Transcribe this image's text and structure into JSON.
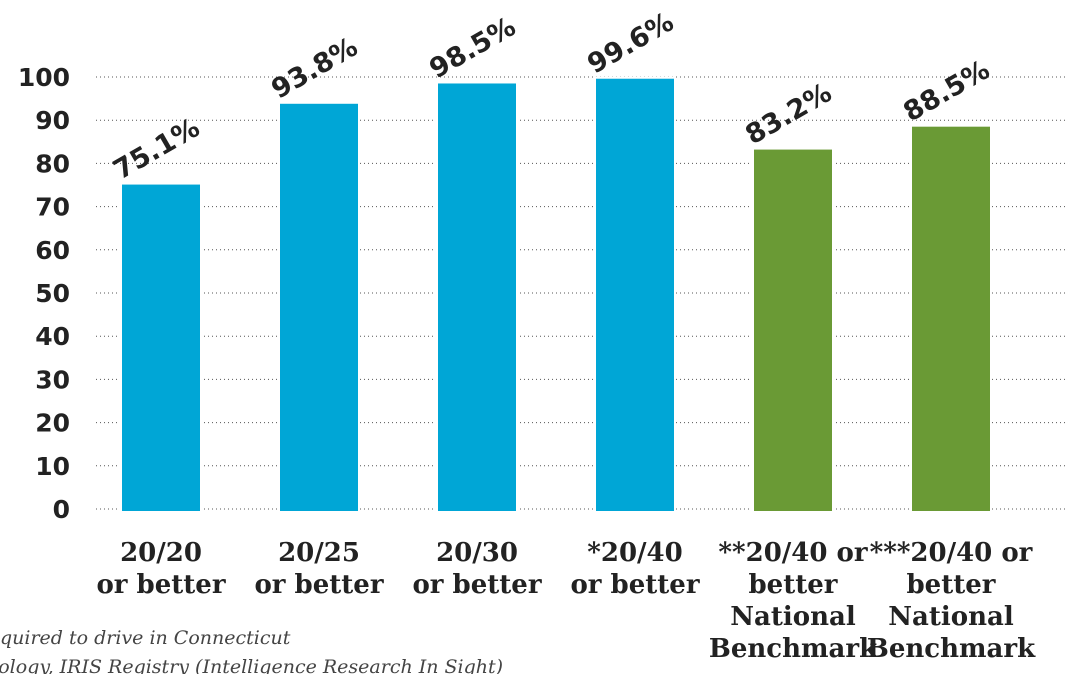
{
  "chart_data": {
    "type": "bar",
    "title": "",
    "xlabel": "",
    "ylabel": "",
    "ylim": [
      0,
      100
    ],
    "yticks": [
      0,
      10,
      20,
      30,
      40,
      50,
      60,
      70,
      80,
      90,
      100
    ],
    "grid": true,
    "categories": [
      [
        "20/20",
        "or better"
      ],
      [
        "20/25",
        "or better"
      ],
      [
        "20/30",
        "or better"
      ],
      [
        "*20/40",
        "or better"
      ],
      [
        "**20/40 or",
        "better",
        "National",
        "Benchmark"
      ],
      [
        "***20/40 or",
        "better",
        "National",
        "Benchmark"
      ]
    ],
    "values": [
      75.1,
      93.8,
      98.5,
      99.6,
      83.2,
      88.5
    ],
    "data_labels": [
      "75.1%",
      "93.8%",
      "98.5%",
      "99.6%",
      "83.2%",
      "88.5%"
    ],
    "bar_colors": [
      "#00a6d6",
      "#00a6d6",
      "#00a6d6",
      "#00a6d6",
      "#6a9a35",
      "#6a9a35"
    ]
  },
  "footnotes": [
    "quired to drive in Connecticut",
    "nology, IRIS Registry (Intelligence Research In Sight)"
  ]
}
